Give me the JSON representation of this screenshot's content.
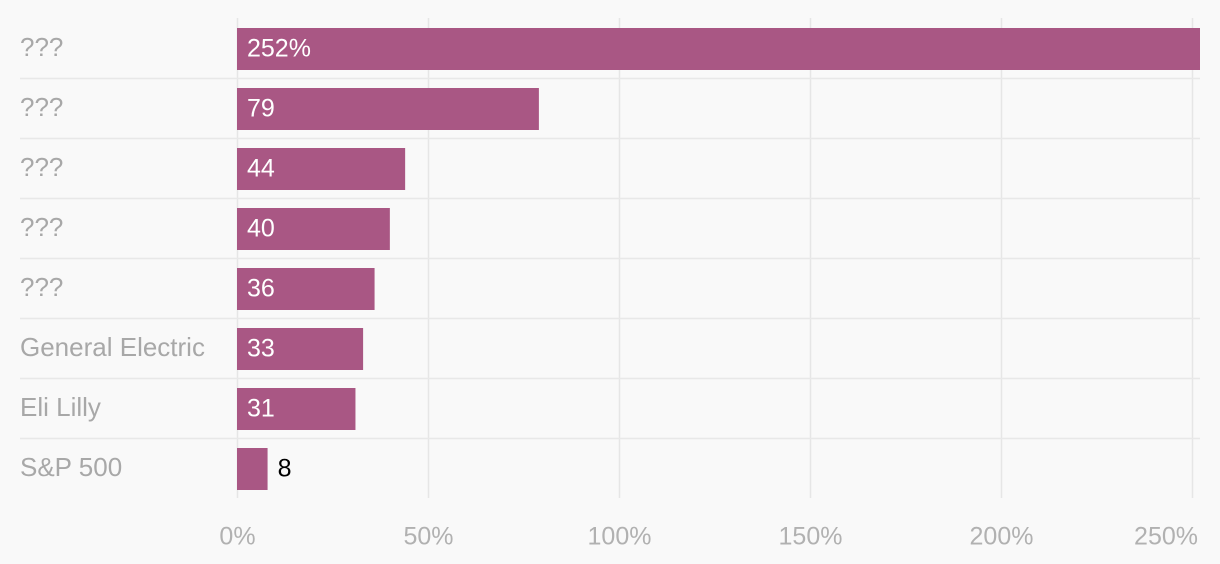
{
  "chart_data": {
    "type": "bar",
    "orientation": "horizontal",
    "categories": [
      "???",
      "???",
      "???",
      "???",
      "???",
      "General Electric",
      "Eli Lilly",
      "S&P 500"
    ],
    "values": [
      252,
      79,
      44,
      40,
      36,
      33,
      31,
      8
    ],
    "value_labels": [
      "252%",
      "79",
      "44",
      "40",
      "36",
      "33",
      "31",
      "8"
    ],
    "x_ticks": [
      0,
      50,
      100,
      150,
      200,
      250
    ],
    "x_tick_labels": [
      "0%",
      "50%",
      "100%",
      "150%",
      "200%",
      "250%"
    ],
    "xlim": [
      0,
      252
    ],
    "title": "",
    "xlabel": "",
    "ylabel": "",
    "grid": true,
    "colors": {
      "bar": "#a95784",
      "grid": "#e6e6e6",
      "row_separator": "#e8e8e8",
      "category_text": "#a8a8a8",
      "tick_text": "#b1b1b1",
      "value_inside": "#ffffff",
      "value_outside": "#000000"
    }
  }
}
